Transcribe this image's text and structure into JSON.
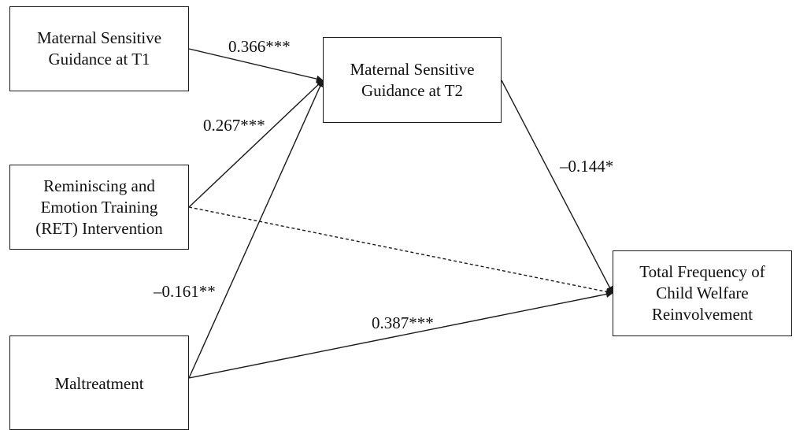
{
  "nodes": {
    "maternal_t1": {
      "lines": [
        "Maternal Sensitive",
        "Guidance at T1"
      ]
    },
    "maternal_t2": {
      "lines": [
        "Maternal Sensitive",
        "Guidance at T2"
      ]
    },
    "ret": {
      "lines": [
        "Reminiscing and",
        "Emotion Training",
        "(RET) Intervention"
      ]
    },
    "maltreatment": {
      "lines": [
        "Maltreatment"
      ]
    },
    "outcome": {
      "lines": [
        "Total Frequency of",
        "Child Welfare",
        "Reinvolvement"
      ]
    }
  },
  "paths": [
    {
      "from": "Maternal Sensitive Guidance at T1",
      "to": "Maternal Sensitive Guidance at T2",
      "coefficient": "0.366***",
      "style": "solid"
    },
    {
      "from": "Reminiscing and Emotion Training (RET) Intervention",
      "to": "Maternal Sensitive Guidance at T2",
      "coefficient": "0.267***",
      "style": "solid"
    },
    {
      "from": "Maltreatment",
      "to": "Maternal Sensitive Guidance at T2",
      "coefficient": "–0.161**",
      "style": "solid"
    },
    {
      "from": "Maternal Sensitive Guidance at T2",
      "to": "Total Frequency of Child Welfare Reinvolvement",
      "coefficient": "–0.144*",
      "style": "solid"
    },
    {
      "from": "Reminiscing and Emotion Training (RET) Intervention",
      "to": "Total Frequency of Child Welfare Reinvolvement",
      "coefficient": "",
      "style": "dashed"
    },
    {
      "from": "Maltreatment",
      "to": "Total Frequency of Child Welfare Reinvolvement",
      "coefficient": "0.387***",
      "style": "solid"
    }
  ],
  "colors": {
    "line": "#1a1a1a",
    "background": "#ffffff"
  }
}
